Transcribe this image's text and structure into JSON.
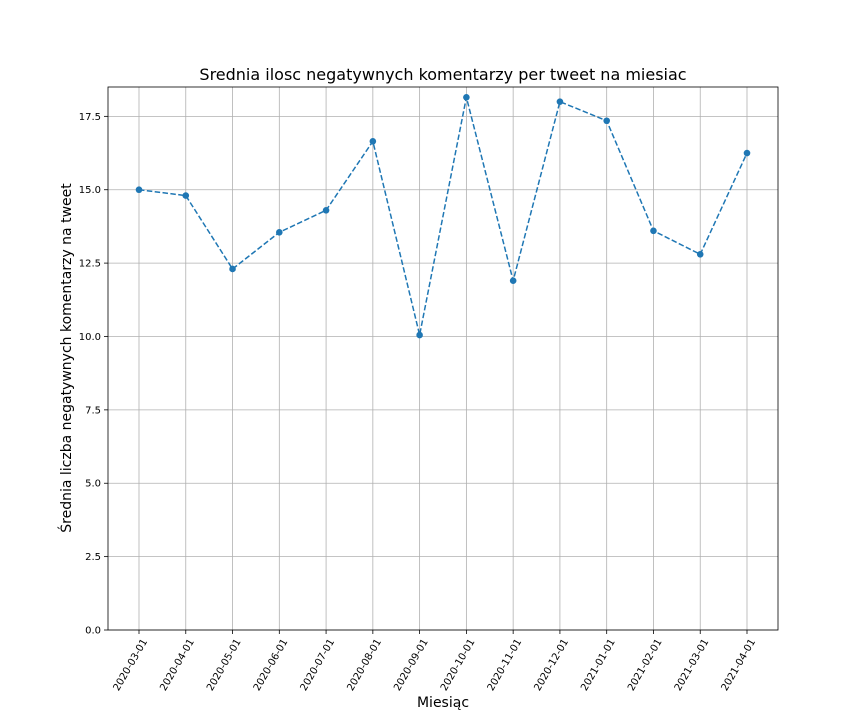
{
  "chart_data": {
    "type": "line",
    "title": "Srednia ilosc negatywnych komentarzy per tweet na miesiac",
    "xlabel": "Miesiąc",
    "ylabel": "Średnia liczba negatywnych komentarzy na tweet",
    "categories": [
      "2020-03-01",
      "2020-04-01",
      "2020-05-01",
      "2020-06-01",
      "2020-07-01",
      "2020-08-01",
      "2020-09-01",
      "2020-10-01",
      "2020-11-01",
      "2020-12-01",
      "2021-01-01",
      "2021-02-01",
      "2021-03-01",
      "2021-04-01"
    ],
    "series": [
      {
        "values": [
          15.0,
          14.8,
          12.3,
          13.55,
          14.3,
          16.65,
          10.05,
          18.15,
          11.9,
          18.0,
          17.35,
          13.6,
          12.8,
          16.25
        ],
        "color": "#1f77b4",
        "line_style": "dashed",
        "marker": "circle"
      }
    ],
    "ylim": [
      0,
      18.5
    ],
    "yticks": [
      "0.0",
      "2.5",
      "5.0",
      "7.5",
      "10.0",
      "12.5",
      "15.0",
      "17.5"
    ],
    "grid": true,
    "xtick_rotation": 60
  }
}
